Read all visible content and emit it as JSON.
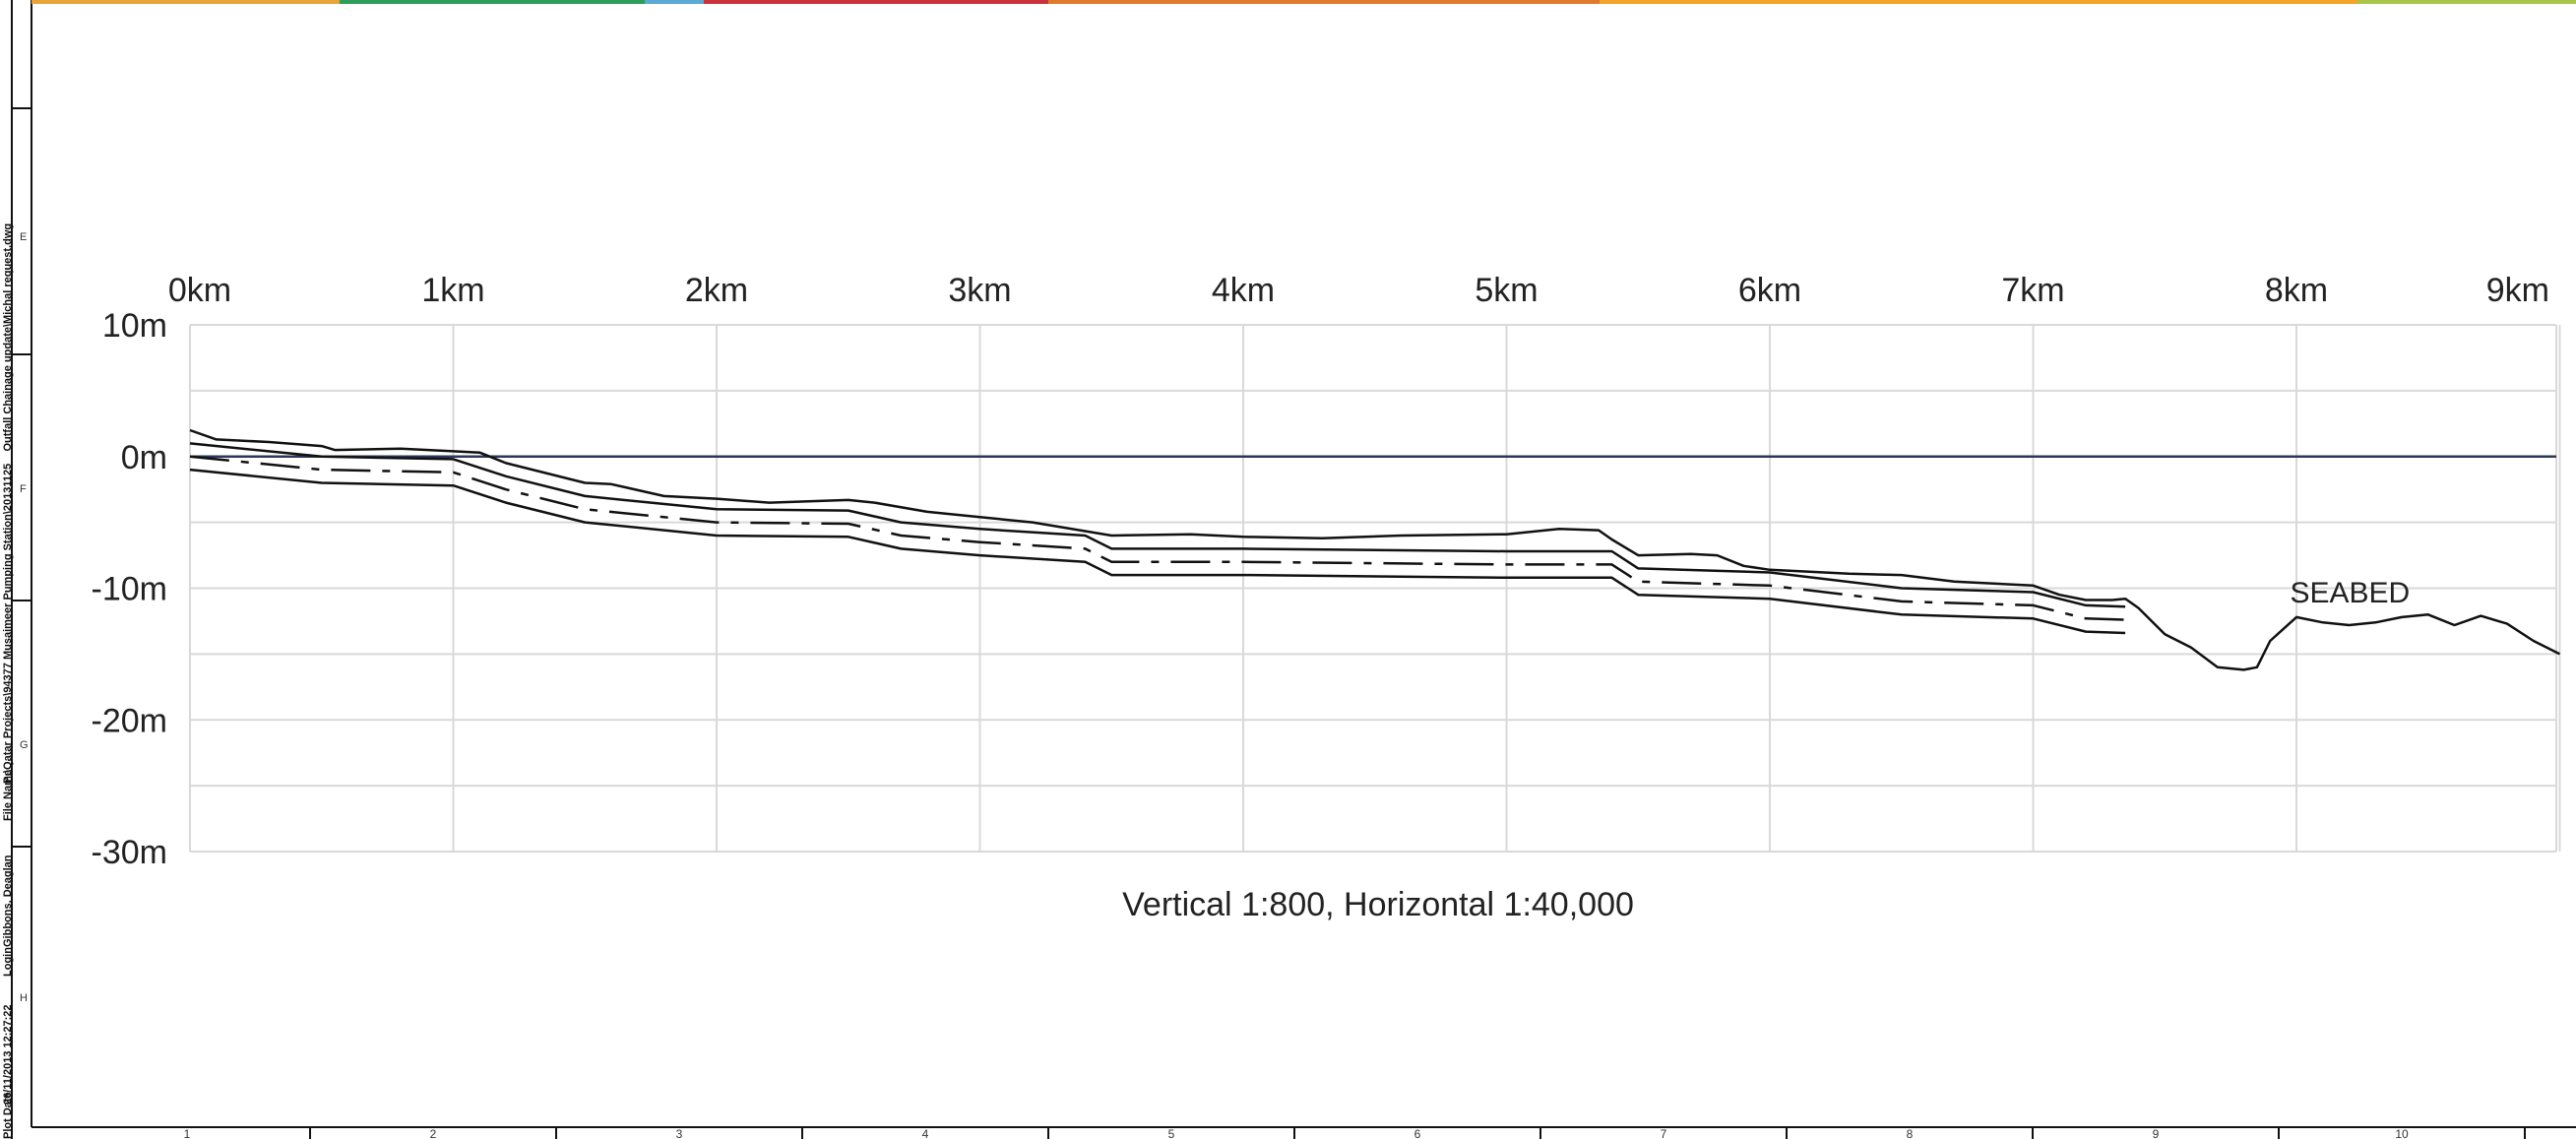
{
  "sheet": {
    "grid_letters": [
      "E",
      "F",
      "G",
      "H"
    ],
    "column_numbers": [
      "1",
      "2",
      "3",
      "4",
      "5",
      "6",
      "7",
      "8",
      "9",
      "10"
    ],
    "top_band_colors": [
      "#e8a33d",
      "#2e9d5a",
      "#5aa9d6",
      "#c8323c",
      "#e07b2e",
      "#f2a42b",
      "#a8c64a"
    ],
    "side_info": {
      "file_name_label": "File Name",
      "file_name": "P:\\Qatar Projects\\94377 Musaimeer Pumping Station\\20131125 _ Outfall Chainage update\\Michal request.dwg",
      "login_label": "Login",
      "login": "Gibbons, Deaglan",
      "plot_date_label": "Plot Date",
      "plot_date": "26/11/2013 12:27:22"
    }
  },
  "chart_data": {
    "type": "line",
    "x_unit": "km",
    "y_unit": "m",
    "x_ticks": [
      "0km",
      "1km",
      "2km",
      "3km",
      "4km",
      "5km",
      "6km",
      "7km",
      "8km",
      "9km"
    ],
    "y_ticks": [
      "10m",
      "0m",
      "-10m",
      "-20m",
      "-30m"
    ],
    "xlim": [
      0,
      9
    ],
    "ylim": [
      -30,
      10
    ],
    "grid": true,
    "reference_line_y": 0,
    "scale_note": "Vertical 1:800, Horizontal 1:40,000",
    "annotation": "SEABED",
    "annotation_at": [
      8.2,
      -10.5
    ],
    "series": [
      {
        "style": "solid",
        "x": [
          0,
          0.1,
          0.3,
          0.5,
          0.55,
          0.8,
          1.0,
          1.1,
          1.2,
          1.5,
          1.6,
          1.8,
          2.0,
          2.2,
          2.5,
          2.6,
          2.8,
          3.0,
          3.2,
          3.5,
          3.8,
          4.0,
          4.3,
          4.6,
          5.0,
          5.2,
          5.35,
          5.4,
          5.5,
          5.7,
          5.8,
          5.9,
          6.0,
          6.3,
          6.5,
          6.7,
          7.0,
          7.1,
          7.2,
          7.3,
          7.35,
          7.4,
          7.5,
          7.6,
          7.7,
          7.8,
          7.85,
          7.9,
          8.0,
          8.1,
          8.2,
          8.3,
          8.4,
          8.5,
          8.6,
          8.7,
          8.8,
          8.9,
          9.0
        ],
        "y": [
          2,
          1.3,
          1.1,
          0.8,
          0.5,
          0.6,
          0.4,
          0.3,
          -0.5,
          -2.0,
          -2.1,
          -3.0,
          -3.2,
          -3.5,
          -3.3,
          -3.5,
          -4.2,
          -4.6,
          -5.0,
          -6.0,
          -5.9,
          -6.1,
          -6.2,
          -6.0,
          -5.9,
          -5.5,
          -5.6,
          -6.3,
          -7.5,
          -7.4,
          -7.5,
          -8.3,
          -8.6,
          -8.9,
          -9.0,
          -9.5,
          -9.8,
          -10.5,
          -10.9,
          -10.9,
          -10.8,
          -11.5,
          -13.5,
          -14.5,
          -16.0,
          -16.2,
          -16.0,
          -14.0,
          -12.2,
          -12.6,
          -12.8,
          -12.6,
          -12.2,
          -12.0,
          -12.8,
          -12.1,
          -12.7,
          -14.0,
          -15.0
        ]
      },
      {
        "style": "solid",
        "x": [
          0,
          0.5,
          1.0,
          1.2,
          1.5,
          2.0,
          2.5,
          2.7,
          3.0,
          3.4,
          3.5,
          4.0,
          5.0,
          5.4,
          5.5,
          6.0,
          6.5,
          7.0,
          7.2,
          7.35
        ],
        "y": [
          1,
          0.0,
          -0.2,
          -1.5,
          -3.0,
          -4.0,
          -4.1,
          -5.0,
          -5.5,
          -6.0,
          -7.0,
          -7.0,
          -7.2,
          -7.2,
          -8.5,
          -8.8,
          -10.0,
          -10.3,
          -11.3,
          -11.4
        ]
      },
      {
        "style": "dash-dot",
        "x": [
          0,
          0.5,
          1.0,
          1.2,
          1.5,
          2.0,
          2.5,
          2.7,
          3.0,
          3.4,
          3.5,
          4.0,
          5.0,
          5.4,
          5.5,
          6.0,
          6.5,
          7.0,
          7.2,
          7.35
        ],
        "y": [
          0,
          -1.0,
          -1.2,
          -2.5,
          -4.0,
          -5.0,
          -5.1,
          -6.0,
          -6.5,
          -7.0,
          -8.0,
          -8.0,
          -8.2,
          -8.2,
          -9.5,
          -9.8,
          -11.0,
          -11.3,
          -12.3,
          -12.4
        ]
      },
      {
        "style": "solid",
        "x": [
          0,
          0.5,
          1.0,
          1.2,
          1.5,
          2.0,
          2.5,
          2.7,
          3.0,
          3.4,
          3.5,
          4.0,
          5.0,
          5.4,
          5.5,
          6.0,
          6.5,
          7.0,
          7.2,
          7.35
        ],
        "y": [
          -1,
          -2.0,
          -2.2,
          -3.5,
          -5.0,
          -6.0,
          -6.1,
          -7.0,
          -7.5,
          -8.0,
          -9.0,
          -9.0,
          -9.2,
          -9.2,
          -10.5,
          -10.8,
          -12.0,
          -12.3,
          -13.3,
          -13.4
        ]
      }
    ]
  }
}
